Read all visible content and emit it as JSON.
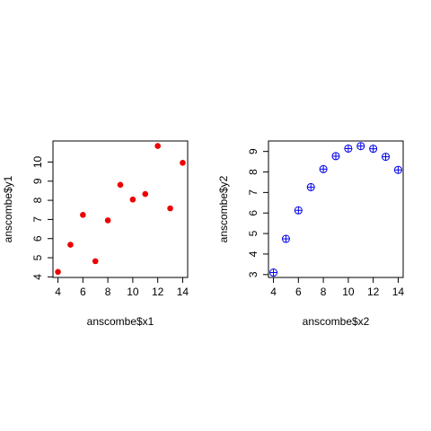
{
  "chart_data": [
    {
      "type": "scatter",
      "xlabel": "anscombe$x1",
      "ylabel": "anscombe$y1",
      "xlim": [
        3.6,
        14.4
      ],
      "ylim": [
        3.97,
        11.1
      ],
      "x_ticks": [
        4,
        6,
        8,
        10,
        12,
        14
      ],
      "y_ticks": [
        4,
        5,
        6,
        7,
        8,
        9,
        10
      ],
      "marker": "filled-circle",
      "color": "#ee0000",
      "x": [
        10,
        8,
        13,
        9,
        11,
        14,
        6,
        4,
        12,
        7,
        5
      ],
      "y": [
        8.04,
        6.95,
        7.58,
        8.81,
        8.33,
        9.96,
        7.24,
        4.26,
        10.84,
        4.82,
        5.68
      ]
    },
    {
      "type": "scatter",
      "xlabel": "anscombe$x2",
      "ylabel": "anscombe$y2",
      "xlim": [
        3.6,
        14.4
      ],
      "ylim": [
        2.86,
        9.51
      ],
      "x_ticks": [
        4,
        6,
        8,
        10,
        12,
        14
      ],
      "y_ticks": [
        3,
        4,
        5,
        6,
        7,
        8,
        9
      ],
      "marker": "circle-plus",
      "color": "#0000ee",
      "x": [
        10,
        8,
        13,
        9,
        11,
        14,
        6,
        4,
        12,
        7,
        5
      ],
      "y": [
        9.14,
        8.14,
        8.74,
        8.77,
        9.26,
        8.1,
        6.13,
        3.1,
        9.13,
        7.26,
        4.74
      ]
    }
  ]
}
